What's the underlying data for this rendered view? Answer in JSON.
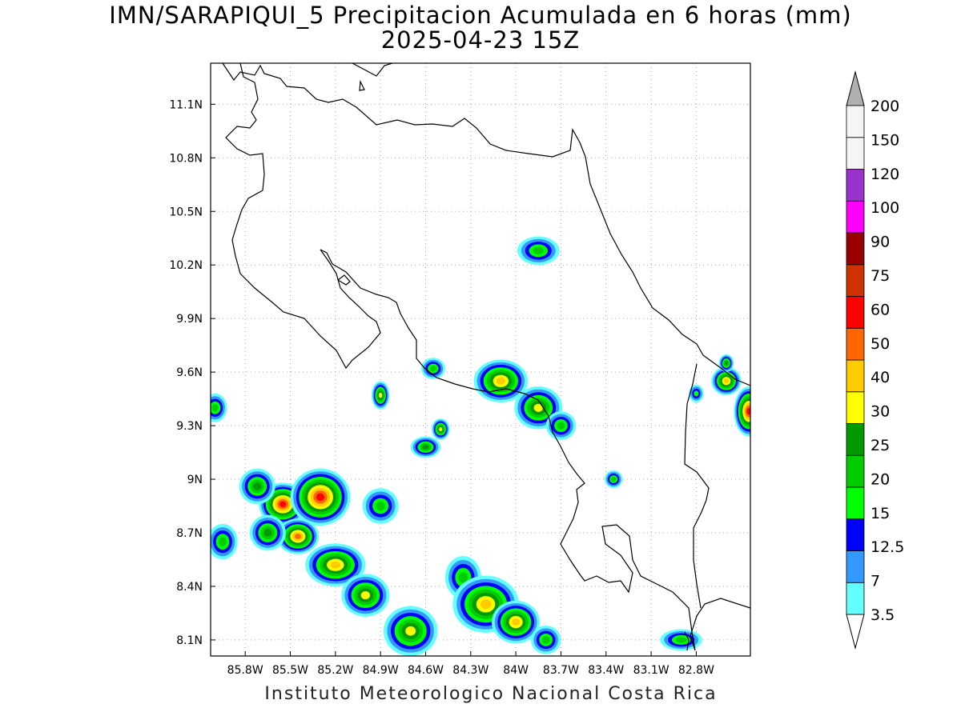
{
  "title": {
    "line1": "IMN/SARAPIQUI_5 Precipitacion Acumulada en 6 horas (mm)",
    "line2": "2025-04-23 15Z"
  },
  "footer": "Instituto Meteorologico Nacional Costa Rica",
  "map": {
    "lon_range": [
      -86.03,
      -82.44
    ],
    "lat_range": [
      8.01,
      11.33
    ],
    "lon_ticks": [
      {
        "value": -85.8,
        "label": "85.8W"
      },
      {
        "value": -85.5,
        "label": "85.5W"
      },
      {
        "value": -85.2,
        "label": "85.2W"
      },
      {
        "value": -84.9,
        "label": "84.9W"
      },
      {
        "value": -84.6,
        "label": "84.6W"
      },
      {
        "value": -84.3,
        "label": "84.3W"
      },
      {
        "value": -84.0,
        "label": "84W"
      },
      {
        "value": -83.7,
        "label": "83.7W"
      },
      {
        "value": -83.4,
        "label": "83.4W"
      },
      {
        "value": -83.1,
        "label": "83.1W"
      },
      {
        "value": -82.8,
        "label": "82.8W"
      }
    ],
    "lat_ticks": [
      {
        "value": 8.1,
        "label": "8.1N"
      },
      {
        "value": 8.4,
        "label": "8.4N"
      },
      {
        "value": 8.7,
        "label": "8.7N"
      },
      {
        "value": 9.0,
        "label": "9N"
      },
      {
        "value": 9.3,
        "label": "9.3N"
      },
      {
        "value": 9.6,
        "label": "9.6N"
      },
      {
        "value": 9.9,
        "label": "9.9N"
      },
      {
        "value": 10.2,
        "label": "10.2N"
      },
      {
        "value": 10.5,
        "label": "10.5N"
      },
      {
        "value": 10.8,
        "label": "10.8N"
      },
      {
        "value": 11.1,
        "label": "11.1N"
      }
    ],
    "grid": true
  },
  "legend": {
    "bins": [
      {
        "label": "3.5",
        "color": "#66ffff"
      },
      {
        "label": "7",
        "color": "#3399ff"
      },
      {
        "label": "12.5",
        "color": "#0000ff"
      },
      {
        "label": "15",
        "color": "#00ff00"
      },
      {
        "label": "20",
        "color": "#00cc00"
      },
      {
        "label": "25",
        "color": "#009900"
      },
      {
        "label": "30",
        "color": "#ffff00"
      },
      {
        "label": "40",
        "color": "#ffcc00"
      },
      {
        "label": "50",
        "color": "#ff6600"
      },
      {
        "label": "60",
        "color": "#ff0000"
      },
      {
        "label": "75",
        "color": "#cc3300"
      },
      {
        "label": "90",
        "color": "#990000"
      },
      {
        "label": "100",
        "color": "#ff00ff"
      },
      {
        "label": "120",
        "color": "#9933cc"
      },
      {
        "label": "150",
        "color": "#f5f5f5"
      },
      {
        "label": "200",
        "color": "#ffffff"
      }
    ],
    "over_color": "#b0b0b0",
    "under_color": "#ffffff"
  },
  "precip_cells": [
    {
      "lon": -85.55,
      "lat": 8.86,
      "rx": 0.16,
      "ry": 0.12,
      "max_mm": 60
    },
    {
      "lon": -85.3,
      "lat": 8.9,
      "rx": 0.2,
      "ry": 0.16,
      "max_mm": 60
    },
    {
      "lon": -85.72,
      "lat": 8.96,
      "rx": 0.12,
      "ry": 0.1,
      "max_mm": 25
    },
    {
      "lon": -85.45,
      "lat": 8.68,
      "rx": 0.14,
      "ry": 0.1,
      "max_mm": 50
    },
    {
      "lon": -85.65,
      "lat": 8.7,
      "rx": 0.12,
      "ry": 0.1,
      "max_mm": 25
    },
    {
      "lon": -85.2,
      "lat": 8.52,
      "rx": 0.2,
      "ry": 0.12,
      "max_mm": 40
    },
    {
      "lon": -85.0,
      "lat": 8.35,
      "rx": 0.16,
      "ry": 0.12,
      "max_mm": 30
    },
    {
      "lon": -84.7,
      "lat": 8.15,
      "rx": 0.18,
      "ry": 0.14,
      "max_mm": 30
    },
    {
      "lon": -84.35,
      "lat": 8.45,
      "rx": 0.12,
      "ry": 0.12,
      "max_mm": 20
    },
    {
      "lon": -84.2,
      "lat": 8.3,
      "rx": 0.22,
      "ry": 0.16,
      "max_mm": 40
    },
    {
      "lon": -84.0,
      "lat": 8.2,
      "rx": 0.16,
      "ry": 0.12,
      "max_mm": 40
    },
    {
      "lon": -83.8,
      "lat": 8.1,
      "rx": 0.1,
      "ry": 0.08,
      "max_mm": 20
    },
    {
      "lon": -84.9,
      "lat": 8.85,
      "rx": 0.12,
      "ry": 0.1,
      "max_mm": 20
    },
    {
      "lon": -85.95,
      "lat": 8.65,
      "rx": 0.1,
      "ry": 0.1,
      "max_mm": 20
    },
    {
      "lon": -86.0,
      "lat": 9.4,
      "rx": 0.08,
      "ry": 0.08,
      "max_mm": 20
    },
    {
      "lon": -84.1,
      "lat": 9.55,
      "rx": 0.18,
      "ry": 0.12,
      "max_mm": 40
    },
    {
      "lon": -83.85,
      "lat": 9.4,
      "rx": 0.16,
      "ry": 0.12,
      "max_mm": 30
    },
    {
      "lon": -83.7,
      "lat": 9.3,
      "rx": 0.1,
      "ry": 0.08,
      "max_mm": 20
    },
    {
      "lon": -84.55,
      "lat": 9.62,
      "rx": 0.08,
      "ry": 0.06,
      "max_mm": 20
    },
    {
      "lon": -84.9,
      "lat": 9.47,
      "rx": 0.06,
      "ry": 0.08,
      "max_mm": 30
    },
    {
      "lon": -84.6,
      "lat": 9.18,
      "rx": 0.1,
      "ry": 0.06,
      "max_mm": 25
    },
    {
      "lon": -84.5,
      "lat": 9.28,
      "rx": 0.06,
      "ry": 0.06,
      "max_mm": 30
    },
    {
      "lon": -83.85,
      "lat": 10.28,
      "rx": 0.14,
      "ry": 0.08,
      "max_mm": 20
    },
    {
      "lon": -82.45,
      "lat": 9.38,
      "rx": 0.1,
      "ry": 0.14,
      "max_mm": 60
    },
    {
      "lon": -82.6,
      "lat": 9.55,
      "rx": 0.1,
      "ry": 0.08,
      "max_mm": 40
    },
    {
      "lon": -82.9,
      "lat": 8.1,
      "rx": 0.14,
      "ry": 0.06,
      "max_mm": 20
    },
    {
      "lon": -83.35,
      "lat": 9.0,
      "rx": 0.06,
      "ry": 0.05,
      "max_mm": 20
    },
    {
      "lon": -82.8,
      "lat": 9.48,
      "rx": 0.05,
      "ry": 0.05,
      "max_mm": 15
    },
    {
      "lon": -82.6,
      "lat": 9.65,
      "rx": 0.05,
      "ry": 0.05,
      "max_mm": 25
    }
  ]
}
